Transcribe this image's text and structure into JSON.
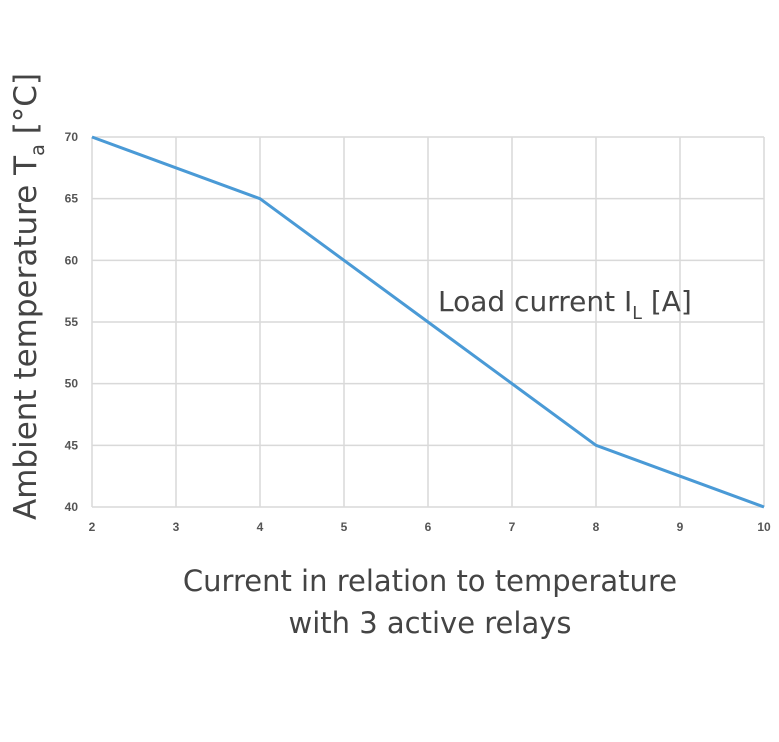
{
  "chart_data": {
    "type": "line",
    "x": [
      2,
      4,
      6,
      8,
      10
    ],
    "series": [
      {
        "values": [
          70,
          65,
          55,
          45,
          40
        ]
      }
    ],
    "xlim": [
      2,
      10
    ],
    "ylim": [
      40,
      70
    ],
    "x_ticks": [
      "2",
      "3",
      "4",
      "5",
      "6",
      "7",
      "8",
      "9",
      "10"
    ],
    "y_ticks": [
      "40",
      "45",
      "50",
      "55",
      "60",
      "65",
      "70"
    ],
    "ylabel": {
      "main": "Ambient temperature T",
      "sub": "a",
      "unit": " [°C]"
    },
    "annotation": {
      "main": "Load current I",
      "sub": "L",
      "unit": " [A]"
    },
    "grid": true,
    "line_color": "#4a9ad6",
    "grid_color": "#d9d9d9"
  },
  "caption": {
    "line1": "Current in relation to temperature",
    "line2": "with 3 active relays"
  }
}
